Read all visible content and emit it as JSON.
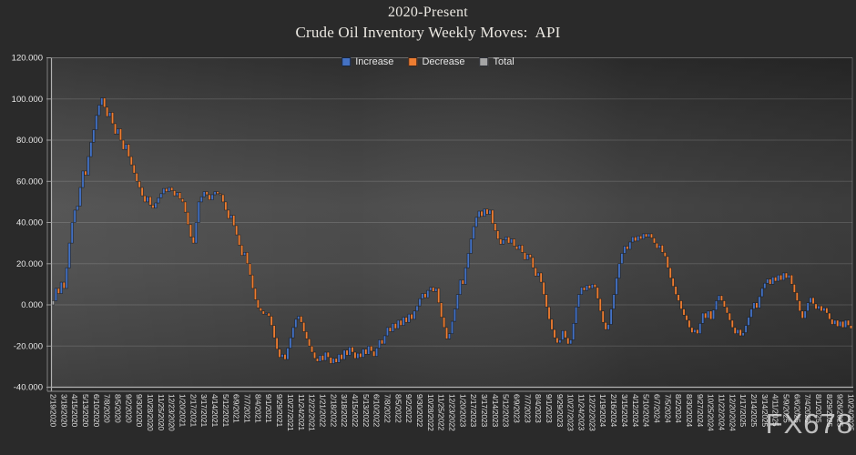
{
  "title": {
    "line1": "2020-Present",
    "line2": "Crude Oil Inventory Weekly Moves:  API"
  },
  "watermark": "FX678",
  "legend": {
    "items": [
      {
        "label": "Increase",
        "color": "#4472c4"
      },
      {
        "label": "Decrease",
        "color": "#ed7d31"
      },
      {
        "label": "Total",
        "color": "#a5a5a5"
      }
    ]
  },
  "chart_data": {
    "type": "bar",
    "subtype": "waterfall",
    "title": "2020-Present Crude Oil Inventory Weekly Moves: API",
    "legend_position": "top-center-inside",
    "grid": true,
    "y_axis": {
      "min": -40,
      "max": 120,
      "step": 20,
      "tick_labels": [
        "120.000",
        "100.000",
        "80.000",
        "60.000",
        "40.000",
        "20.000",
        "0.000",
        "-20.000",
        "-40.000"
      ]
    },
    "x_axis": {
      "label_every_n_bars": 4,
      "tick_labels": [
        "2/19/2020",
        "3/18/2020",
        "4/15/2020",
        "5/13/2020",
        "6/10/2020",
        "7/8/2020",
        "8/5/2020",
        "9/2/2020",
        "9/30/2020",
        "10/28/2020",
        "11/25/2020",
        "12/23/2020",
        "1/20/2021",
        "2/17/2021",
        "3/17/2021",
        "4/14/2021",
        "5/12/2021",
        "6/9/2021",
        "7/7/2021",
        "8/4/2021",
        "9/1/2021",
        "9/29/2021",
        "10/27/2021",
        "11/24/2021",
        "12/22/2021",
        "1/21/2022",
        "2/18/2022",
        "3/18/2022",
        "4/15/2022",
        "5/13/2022",
        "6/10/2022",
        "7/8/2022",
        "8/5/2022",
        "9/2/2022",
        "9/30/2022",
        "10/28/2022",
        "11/25/2022",
        "12/23/2022",
        "1/20/2023",
        "2/17/2023",
        "3/17/2023",
        "4/14/2023",
        "5/12/2023",
        "6/9/2023",
        "7/7/2023",
        "8/4/2023",
        "9/1/2023",
        "9/29/2023",
        "10/27/2023",
        "11/24/2023",
        "12/22/2023",
        "1/19/2024",
        "2/16/2024",
        "3/15/2024",
        "4/12/2024",
        "5/10/2024",
        "6/7/2024",
        "7/5/2024",
        "8/2/2024",
        "8/30/2024",
        "9/27/2024",
        "10/25/2024",
        "11/22/2024",
        "12/20/2024",
        "1/17/2025",
        "2/14/2025",
        "3/14/2025",
        "4/11/2025",
        "5/9/2025",
        "6/6/2025",
        "7/4/2025",
        "8/1/2025",
        "8/29/2025",
        "9/26/2025",
        "10/24/2025"
      ]
    },
    "series_colors": {
      "increase": "#4472c4",
      "decrease": "#ed7d31",
      "total": "#a5a5a5"
    },
    "first_bar_is_total": true,
    "start_value": 0,
    "cumulative_weekly": [
      2,
      8,
      5.5,
      11,
      8,
      18,
      30,
      40,
      46,
      48,
      57,
      65,
      63,
      72,
      79,
      85,
      92,
      97,
      100.5,
      96,
      91.5,
      93.5,
      88,
      83,
      85.5,
      80,
      75.5,
      78,
      72,
      68,
      64,
      60,
      57,
      53,
      50,
      52.5,
      48.5,
      47,
      49.5,
      52,
      54,
      56.5,
      55,
      57,
      55.5,
      53,
      54.5,
      51.5,
      50,
      45,
      39,
      33,
      30,
      40,
      50,
      52.5,
      55,
      53.5,
      51,
      53.5,
      55,
      54,
      53.5,
      50,
      46,
      42,
      43.5,
      38.5,
      34,
      29,
      24,
      25.5,
      20,
      14.5,
      8,
      2.5,
      -1.5,
      -3,
      -4.5,
      -4,
      -5.5,
      -10,
      -16,
      -21.5,
      -25.5,
      -24,
      -26.5,
      -21,
      -16,
      -11,
      -7,
      -5.5,
      -8.5,
      -13,
      -16.5,
      -20,
      -23,
      -26,
      -27.5,
      -24.5,
      -27,
      -23,
      -25.5,
      -28.5,
      -26,
      -28,
      -24,
      -26.5,
      -22,
      -24.5,
      -20.5,
      -23,
      -26,
      -23.5,
      -25.5,
      -21.5,
      -24,
      -20,
      -22.5,
      -25,
      -21,
      -17,
      -19,
      -15,
      -11,
      -13,
      -9,
      -11.5,
      -7.5,
      -10,
      -6,
      -8.5,
      -4.5,
      -7,
      -3,
      -0.5,
      3,
      5.5,
      3.5,
      7,
      8.5,
      6.5,
      8,
      1,
      -6,
      -11,
      -16.5,
      -14,
      -8,
      -2,
      5,
      12,
      10,
      18,
      25,
      32,
      38,
      42.5,
      45.5,
      43,
      46.5,
      44,
      46,
      39.5,
      36,
      32,
      29.5,
      31.5,
      33,
      30,
      32,
      28.5,
      27,
      29,
      25.5,
      22,
      24.5,
      23,
      18,
      14,
      15.5,
      11,
      5,
      -1,
      -7,
      -12,
      -16,
      -18.5,
      -17,
      -12.5,
      -16,
      -19,
      -17,
      -9,
      -1,
      5,
      8.5,
      7,
      9.5,
      8,
      10,
      8.5,
      3,
      -3,
      -8.5,
      -12,
      -9.5,
      -2,
      5,
      13,
      20,
      25,
      28.5,
      27,
      30.5,
      33,
      31,
      33.5,
      32,
      34.5,
      33,
      34.5,
      32.5,
      30,
      27.5,
      29,
      25.5,
      23.5,
      18,
      13,
      9,
      5,
      2,
      -2,
      -5,
      -7.5,
      -11,
      -13.5,
      -12,
      -14,
      -9,
      -4,
      -6.5,
      -3,
      -7,
      -2.5,
      2,
      4.5,
      2,
      -1,
      -4,
      -7.5,
      -11,
      -14,
      -12,
      -15,
      -13.5,
      -10,
      -6,
      -2,
      1,
      -1.5,
      4,
      8,
      10.5,
      12.5,
      10,
      13.5,
      11.5,
      14.5,
      12,
      15.5,
      13,
      14.5,
      10,
      6,
      2,
      -3,
      -6.5,
      -3,
      1,
      3.5,
      0.5,
      -2,
      -0.5,
      -3,
      -1.5,
      -4,
      -7,
      -9.5,
      -7.5,
      -10.5,
      -8,
      -11,
      -7.5,
      -10,
      -11.5
    ]
  }
}
